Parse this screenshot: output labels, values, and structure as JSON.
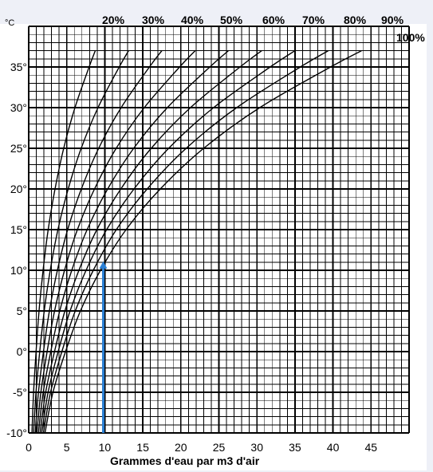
{
  "chart_data": {
    "type": "line",
    "title": "",
    "xlabel": "Grammes d'eau par m3 d'air",
    "ylabel": "",
    "y_unit": "°C",
    "xlim": [
      0,
      50
    ],
    "ylim": [
      -10,
      40
    ],
    "x_ticks": [
      "0",
      "5",
      "10",
      "15",
      "20",
      "25",
      "30",
      "35",
      "40",
      "45"
    ],
    "y_ticks": [
      "-10°",
      "-5°",
      "0°",
      "5°",
      "10°",
      "15°",
      "20°",
      "25°",
      "30°",
      "35°"
    ],
    "grid": true,
    "series": [
      {
        "name": "20%",
        "x": [
          0.43,
          0.64,
          0.97,
          1.36,
          1.89,
          2.56,
          3.46,
          4.6,
          6.08,
          7.94,
          8.75
        ],
        "y": [
          -10,
          -5,
          0,
          5,
          10,
          15,
          20,
          25,
          30,
          35,
          37
        ]
      },
      {
        "name": "30%",
        "x": [
          0.64,
          0.96,
          1.45,
          2.04,
          2.83,
          3.84,
          5.19,
          6.9,
          9.11,
          11.9,
          13.13
        ],
        "y": [
          -10,
          -5,
          0,
          5,
          10,
          15,
          20,
          25,
          30,
          35,
          37
        ]
      },
      {
        "name": "40%",
        "x": [
          0.86,
          1.28,
          1.94,
          2.72,
          3.77,
          5.12,
          6.92,
          9.2,
          12.15,
          15.87,
          17.5
        ],
        "y": [
          -10,
          -5,
          0,
          5,
          10,
          15,
          20,
          25,
          30,
          35,
          37
        ]
      },
      {
        "name": "50%",
        "x": [
          1.07,
          1.6,
          2.42,
          3.4,
          4.71,
          6.4,
          8.65,
          11.5,
          15.19,
          19.84,
          21.88
        ],
        "y": [
          -10,
          -5,
          0,
          5,
          10,
          15,
          20,
          25,
          30,
          35,
          37
        ]
      },
      {
        "name": "60%",
        "x": [
          1.28,
          1.91,
          2.9,
          4.08,
          5.66,
          7.68,
          10.38,
          13.8,
          18.22,
          23.81,
          26.25
        ],
        "y": [
          -10,
          -5,
          0,
          5,
          10,
          15,
          20,
          25,
          30,
          35,
          37
        ]
      },
      {
        "name": "70%",
        "x": [
          1.5,
          2.23,
          3.39,
          4.76,
          6.6,
          8.96,
          12.11,
          16.1,
          21.26,
          27.78,
          30.63
        ],
        "y": [
          -10,
          -5,
          0,
          5,
          10,
          15,
          20,
          25,
          30,
          35,
          37
        ]
      },
      {
        "name": "80%",
        "x": [
          1.71,
          2.55,
          3.87,
          5.44,
          7.54,
          10.24,
          13.84,
          18.4,
          24.3,
          31.74,
          35
        ],
        "y": [
          -10,
          -5,
          0,
          5,
          10,
          15,
          20,
          25,
          30,
          35,
          37
        ]
      },
      {
        "name": "90%",
        "x": [
          1.93,
          2.87,
          4.36,
          6.12,
          8.49,
          11.52,
          15.57,
          20.7,
          27.34,
          35.71,
          39.38
        ],
        "y": [
          -10,
          -5,
          0,
          5,
          10,
          15,
          20,
          25,
          30,
          35,
          37
        ]
      },
      {
        "name": "100%",
        "x": [
          2.14,
          3.19,
          4.84,
          6.8,
          9.43,
          12.8,
          17.3,
          23.0,
          30.37,
          39.68,
          43.75
        ],
        "y": [
          -10,
          -5,
          0,
          5,
          10,
          15,
          20,
          25,
          30,
          35,
          37
        ]
      }
    ],
    "annotation": {
      "type": "vertical-arrow",
      "color": "#2a7fd4",
      "x": 9.8,
      "y_from": -10,
      "y_to": 11
    }
  },
  "colors": {
    "grid": "#000000",
    "curve": "#000000",
    "annotation": "#2a7fd4",
    "background": "#ffffff"
  }
}
